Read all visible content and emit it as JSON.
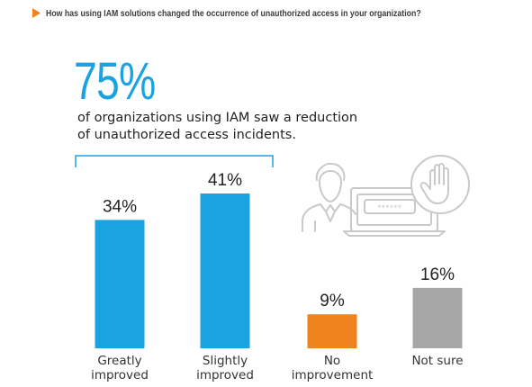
{
  "question": {
    "text": "How has using IAM solutions changed the occurrence of unauthorized access in your organization?",
    "marker_color": "#f0831e"
  },
  "headline": {
    "percent": "75%",
    "line1": "of organizations using IAM saw a reduction",
    "line2": "of unauthorized access incidents.",
    "color": "#1aa3e0"
  },
  "chart_data": {
    "type": "bar",
    "categories": [
      [
        "Greatly",
        "improved"
      ],
      [
        "Slightly",
        "improved"
      ],
      [
        "No",
        "improvement"
      ],
      [
        "Not sure"
      ]
    ],
    "values": [
      34,
      41,
      9,
      16
    ],
    "value_labels": [
      "34%",
      "41%",
      "9%",
      "16%"
    ],
    "colors": [
      "#1aa3e0",
      "#1aa3e0",
      "#f0831e",
      "#a7a7a7"
    ],
    "ylim": [
      0,
      45
    ],
    "grid": false,
    "xlabel": "",
    "ylabel": ""
  },
  "illustration": {
    "icons": [
      "user-icon",
      "laptop-icon",
      "password-field-icon",
      "stop-hand-icon"
    ],
    "line_color": "#c9c9c9"
  }
}
